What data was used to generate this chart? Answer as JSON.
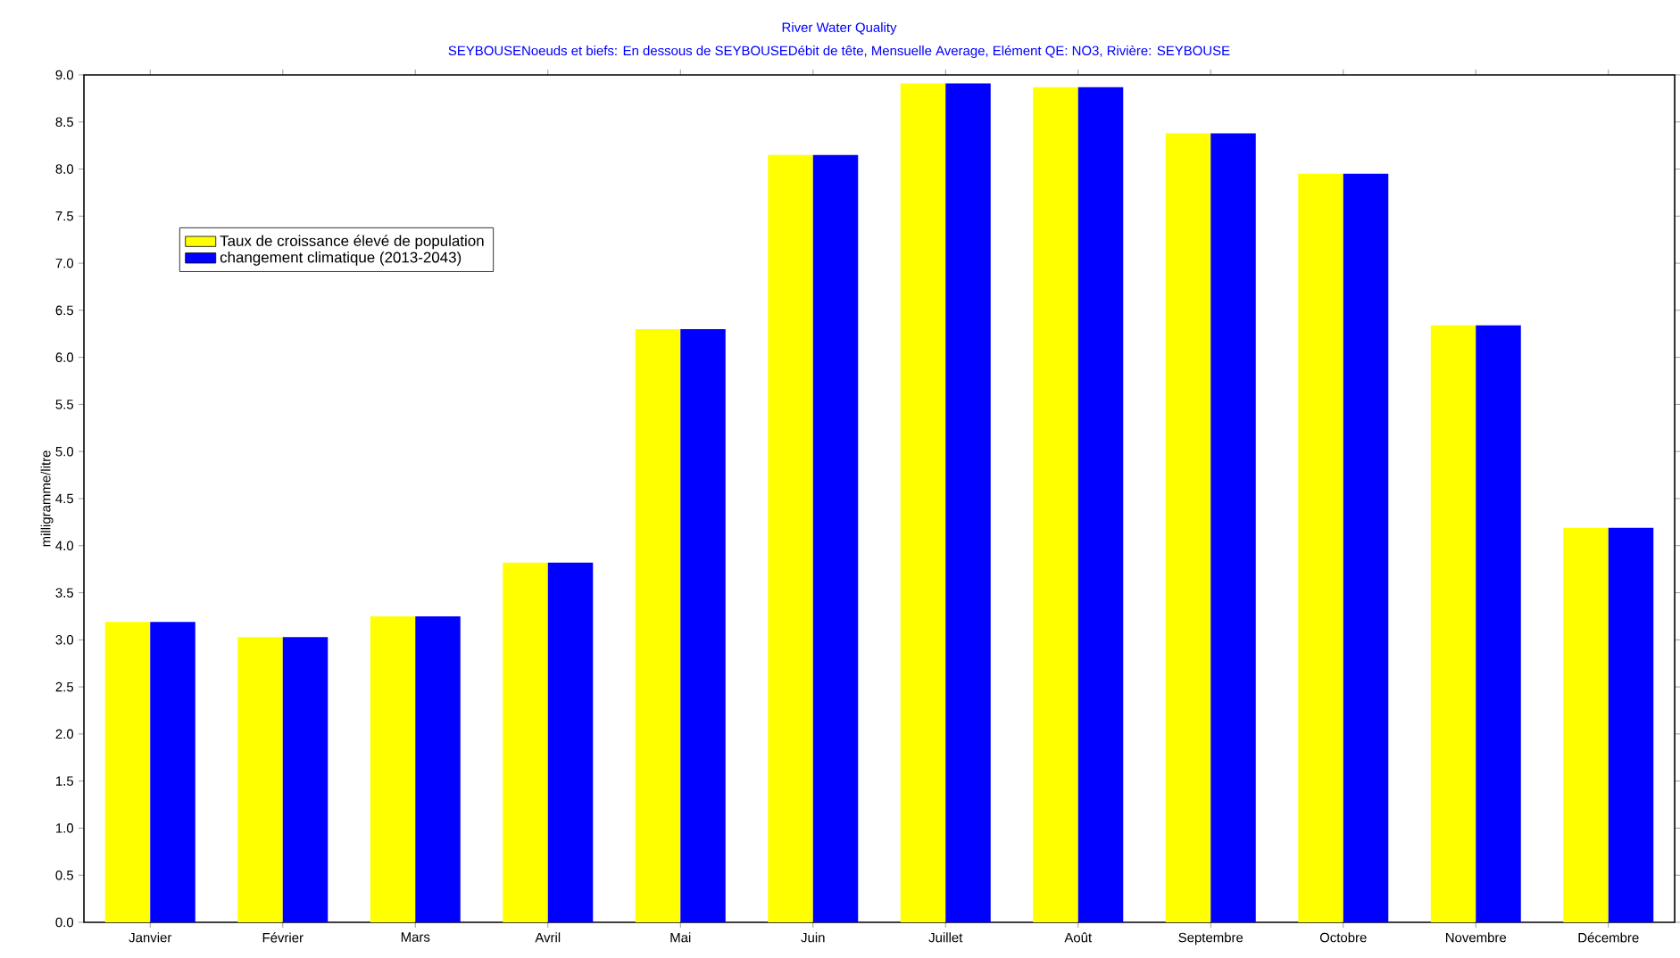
{
  "chart_data": {
    "type": "bar",
    "title": "River Water Quality",
    "subtitle": "SEYBOUSENoeuds et biefs: En dessous de SEYBOUSEDébit de tête,  Mensuelle Average,  Elément QE: NO3,  Rivière: SEYBOUSE",
    "ylabel": "milligramme/litre",
    "categories": [
      "Janvier",
      "Février",
      "Mars",
      "Avril",
      "Mai",
      "Juin",
      "Juillet",
      "Août",
      "Septembre",
      "Octobre",
      "Novembre",
      "Décembre"
    ],
    "series": [
      {
        "name": "Taux de croissance élevé de population",
        "color": "#ffff00",
        "values": [
          3.19,
          3.03,
          3.25,
          3.82,
          6.3,
          8.15,
          8.91,
          8.87,
          8.38,
          7.95,
          6.34,
          4.19
        ]
      },
      {
        "name": "changement climatique (2013-2043)",
        "color": "#0000ff",
        "values": [
          3.19,
          3.03,
          3.25,
          3.82,
          6.3,
          8.15,
          8.91,
          8.87,
          8.38,
          7.95,
          6.34,
          4.19
        ]
      }
    ],
    "ylim": [
      0,
      9
    ],
    "yticks": [
      {
        "value": 0,
        "label": "0.0"
      },
      {
        "value": 0.5,
        "label": "0.5"
      },
      {
        "value": 1,
        "label": "1.0"
      },
      {
        "value": 1.5,
        "label": "1.5"
      },
      {
        "value": 2,
        "label": "2.0"
      },
      {
        "value": 2.5,
        "label": "2.5"
      },
      {
        "value": 3,
        "label": "3.0"
      },
      {
        "value": 3.5,
        "label": "3.5"
      },
      {
        "value": 4,
        "label": "4.0"
      },
      {
        "value": 4.5,
        "label": "4.5"
      },
      {
        "value": 5,
        "label": "5.0"
      },
      {
        "value": 5.5,
        "label": "5.5"
      },
      {
        "value": 6,
        "label": "6.0"
      },
      {
        "value": 6.5,
        "label": "6.5"
      },
      {
        "value": 7,
        "label": "7.0"
      },
      {
        "value": 7.5,
        "label": "7.5"
      },
      {
        "value": 8,
        "label": "8.0"
      },
      {
        "value": 8.5,
        "label": "8.5"
      },
      {
        "value": 9,
        "label": "9.0"
      }
    ],
    "grid": false,
    "legend": "top left"
  }
}
